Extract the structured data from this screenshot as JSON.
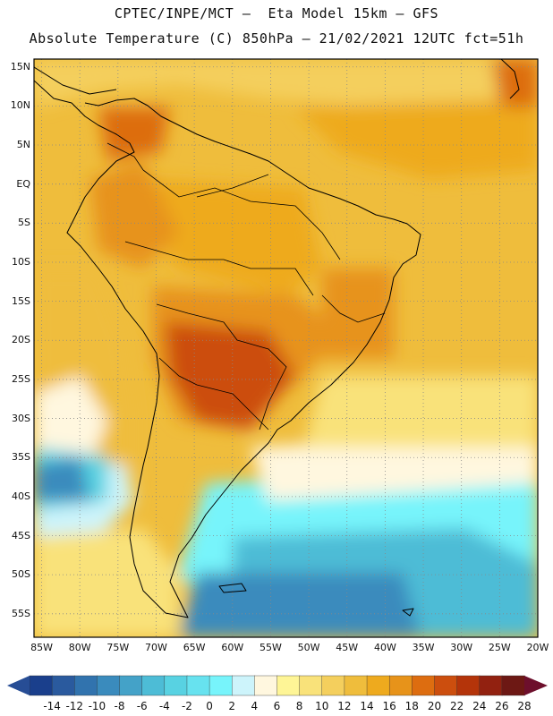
{
  "title": {
    "line1": "CPTEC/INPE/MCT –  Eta Model 15km – GFS",
    "line2": "Absolute Temperature (C) 850hPa – 21/02/2021 12UTC fct=51h"
  },
  "map": {
    "lat_labels": [
      "15N",
      "10N",
      "5N",
      "EQ",
      "5S",
      "10S",
      "15S",
      "20S",
      "25S",
      "30S",
      "35S",
      "40S",
      "45S",
      "50S",
      "55S"
    ],
    "lon_labels": [
      "85W",
      "80W",
      "75W",
      "70W",
      "65W",
      "60W",
      "55W",
      "50W",
      "45W",
      "40W",
      "35W",
      "30W",
      "25W",
      "20W"
    ],
    "lat_range": [
      -58,
      16
    ],
    "lon_range": [
      -86,
      -20
    ],
    "grid_step_deg": 5
  },
  "colorbar": {
    "labels": [
      "-14",
      "-12",
      "-10",
      "-8",
      "-6",
      "-4",
      "-2",
      "0",
      "2",
      "4",
      "6",
      "8",
      "10",
      "12",
      "14",
      "16",
      "18",
      "20",
      "22",
      "24",
      "26",
      "28"
    ],
    "colors": [
      "#1a3f8c",
      "#2a5a9e",
      "#3173ae",
      "#3a8bbd",
      "#44a2c8",
      "#4dbcd6",
      "#58d2e2",
      "#67e2ef",
      "#77f4fb",
      "#cdf4fb",
      "#fff7df",
      "#fef596",
      "#f9e27a",
      "#f4cf5d",
      "#efbd3c",
      "#eeaa1e",
      "#e7931a",
      "#dd6d10",
      "#cc4e0e",
      "#b4340a",
      "#922110",
      "#6d1814"
    ],
    "left_arrow": "#274d95",
    "right_arrow": "#6d0f2c"
  }
}
